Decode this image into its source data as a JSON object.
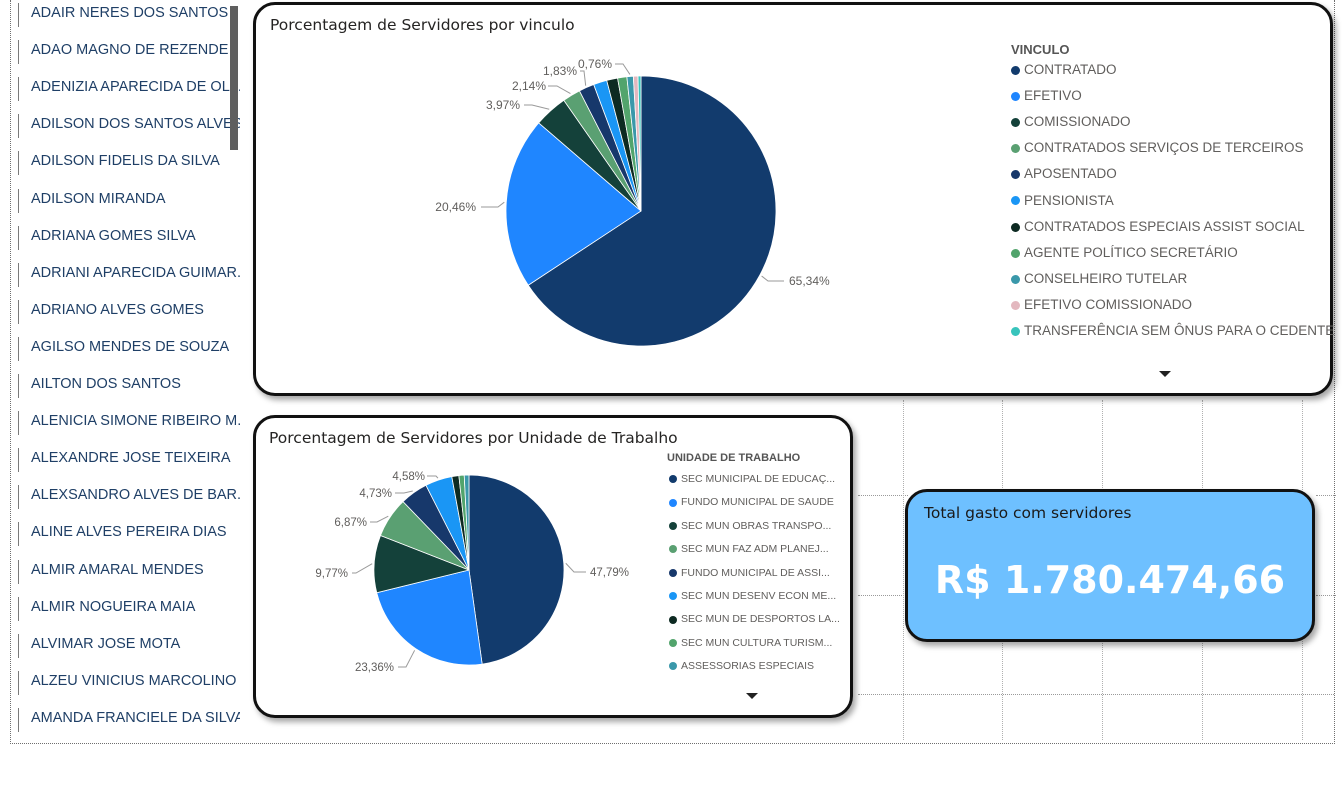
{
  "slicer": {
    "items": [
      "ADAIR NERES DOS SANTOS",
      "ADAO MAGNO DE REZENDE",
      "ADENIZIA APARECIDA DE OLI...",
      "ADILSON DOS SANTOS ALVES",
      "ADILSON FIDELIS DA SILVA",
      "ADILSON MIRANDA",
      "ADRIANA GOMES SILVA",
      "ADRIANI APARECIDA GUIMAR...",
      "ADRIANO ALVES GOMES",
      "AGILSO MENDES DE SOUZA",
      "AILTON DOS SANTOS",
      "ALENICIA SIMONE RIBEIRO M...",
      "ALEXANDRE JOSE TEIXEIRA",
      "ALEXSANDRO ALVES DE BAR...",
      "ALINE ALVES PEREIRA DIAS",
      "ALMIR AMARAL MENDES",
      "ALMIR NOGUEIRA MAIA",
      "ALVIMAR JOSE MOTA",
      "ALZEU VINICIUS MARCOLINO ...",
      "AMANDA FRANCIELE DA SILVA"
    ]
  },
  "kpi": {
    "title": "Total gasto com servidores",
    "value": "R$ 1.780.474,66"
  },
  "chart_data": [
    {
      "type": "pie",
      "title": "Porcentagem de Servidores por vinculo",
      "legend_title": "VINCULO",
      "legend_position": "right",
      "slices": [
        {
          "name": "CONTRATADO",
          "value": 65.34,
          "label": "65,34%",
          "color": "#123b6d"
        },
        {
          "name": "EFETIVO",
          "value": 20.46,
          "label": "20,46%",
          "color": "#1f86ff"
        },
        {
          "name": "COMISSIONADO",
          "value": 3.97,
          "label": "3,97%",
          "color": "#14413a"
        },
        {
          "name": "CONTRATADOS SERVIÇOS DE TERCEIROS",
          "value": 2.14,
          "label": "2,14%",
          "color": "#5aa072"
        },
        {
          "name": "APOSENTADO",
          "value": 1.83,
          "label": "1,83%",
          "color": "#17386b"
        },
        {
          "name": "PENSIONISTA",
          "value": 1.6,
          "label": "",
          "color": "#1a96f5"
        },
        {
          "name": "CONTRATADOS ESPECIAIS ASSIST SOCIAL",
          "value": 1.3,
          "label": "",
          "color": "#0d2a22"
        },
        {
          "name": "AGENTE POLÍTICO SECRETÁRIO",
          "value": 1.1,
          "label": "",
          "color": "#52a46c"
        },
        {
          "name": "CONSELHEIRO TUTELAR",
          "value": 0.76,
          "label": "0,76%",
          "color": "#3a98aa"
        },
        {
          "name": "EFETIVO COMISSIONADO",
          "value": 0.55,
          "label": "",
          "color": "#e3b8bf"
        },
        {
          "name": "TRANSFERÊNCIA SEM ÔNUS PARA O CEDENTE",
          "value": 0.35,
          "label": "",
          "color": "#38c4bc"
        }
      ]
    },
    {
      "type": "pie",
      "title": "Porcentagem de Servidores por Unidade de Trabalho",
      "legend_title": "UNIDADE DE TRABALHO",
      "legend_position": "right",
      "slices": [
        {
          "name": "SEC MUNICIPAL DE EDUCAÇ...",
          "value": 47.79,
          "label": "47,79%",
          "color": "#123b6d"
        },
        {
          "name": "FUNDO MUNICIPAL DE SAUDE",
          "value": 23.36,
          "label": "23,36%",
          "color": "#1f86ff"
        },
        {
          "name": "SEC MUN OBRAS TRANSPO...",
          "value": 9.77,
          "label": "9,77%",
          "color": "#14413a"
        },
        {
          "name": "SEC MUN FAZ ADM PLANEJ...",
          "value": 6.87,
          "label": "6,87%",
          "color": "#5aa072"
        },
        {
          "name": "FUNDO MUNICIPAL DE ASSI...",
          "value": 4.73,
          "label": "4,73%",
          "color": "#17386b"
        },
        {
          "name": "SEC MUN DESENV ECON ME...",
          "value": 4.58,
          "label": "4,58%",
          "color": "#1a96f5"
        },
        {
          "name": "SEC MUN DE DESPORTOS LA...",
          "value": 1.2,
          "label": "",
          "color": "#0d2a22"
        },
        {
          "name": "SEC MUN CULTURA TURISM...",
          "value": 0.9,
          "label": "",
          "color": "#52a46c"
        },
        {
          "name": "ASSESSORIAS ESPECIAIS",
          "value": 0.8,
          "label": "",
          "color": "#3a98aa"
        }
      ]
    }
  ]
}
